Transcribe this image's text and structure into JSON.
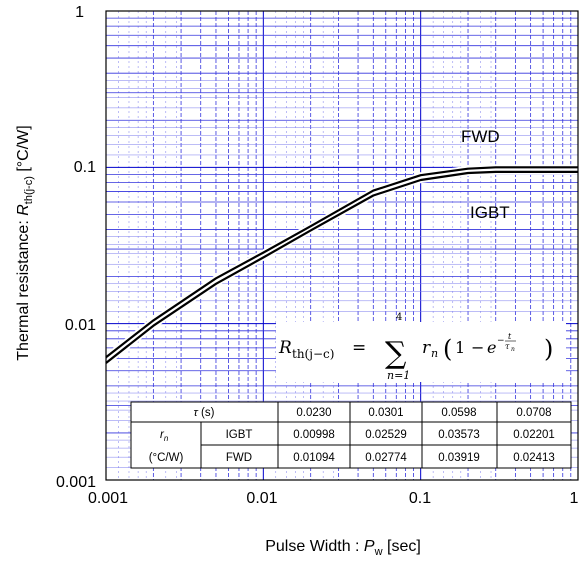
{
  "chart_data": {
    "type": "line",
    "xscale": "log",
    "yscale": "log",
    "xlim": [
      0.001,
      1
    ],
    "ylim": [
      0.001,
      1
    ],
    "grid": true,
    "x_ticks": [
      "0.001",
      "0.01",
      "0.1",
      "1"
    ],
    "y_ticks": [
      "1",
      "0.1",
      "0.01",
      "0.001"
    ],
    "xlabel": {
      "main": "Pulse Width : ",
      "var": "P",
      "sub": "w",
      "unit": " [sec]"
    },
    "ylabel": {
      "main": "Thermal resistance: ",
      "var": "R",
      "sub": "th(j-c)",
      "unit": " [°C/W]"
    },
    "series": [
      {
        "name": "FWD",
        "x": [
          0.001,
          0.002,
          0.005,
          0.01,
          0.02,
          0.05,
          0.1,
          0.2,
          0.3,
          0.5,
          1
        ],
        "y": [
          0.0061,
          0.0105,
          0.0195,
          0.0285,
          0.042,
          0.071,
          0.089,
          0.098,
          0.1,
          0.1,
          0.1
        ]
      },
      {
        "name": "IGBT",
        "x": [
          0.001,
          0.002,
          0.005,
          0.01,
          0.02,
          0.05,
          0.1,
          0.2,
          0.3,
          0.5,
          1
        ],
        "y": [
          0.0056,
          0.0097,
          0.018,
          0.0265,
          0.0395,
          0.066,
          0.083,
          0.092,
          0.0935,
          0.0935,
          0.0935
        ]
      }
    ],
    "formula": {
      "lhs": "R",
      "lhs_sub": "th(j−c)",
      "sum_upper": "4",
      "sum_lower": "n=1",
      "term": "r",
      "term_sub": "n",
      "exp_num": "t",
      "exp_den": "τ",
      "exp_den_sub": "n"
    },
    "table": {
      "tau_label": "τ",
      "tau_unit": " (s)",
      "tau": [
        "0.0230",
        "0.0301",
        "0.0598",
        "0.0708"
      ],
      "r_label": "r",
      "r_sub": "n",
      "unit_label": "(°C/W)",
      "rows": [
        {
          "name": "IGBT",
          "values": [
            "0.00998",
            "0.02529",
            "0.03573",
            "0.02201"
          ]
        },
        {
          "name": "FWD",
          "values": [
            "0.01094",
            "0.02774",
            "0.03919",
            "0.02413"
          ]
        }
      ]
    }
  }
}
